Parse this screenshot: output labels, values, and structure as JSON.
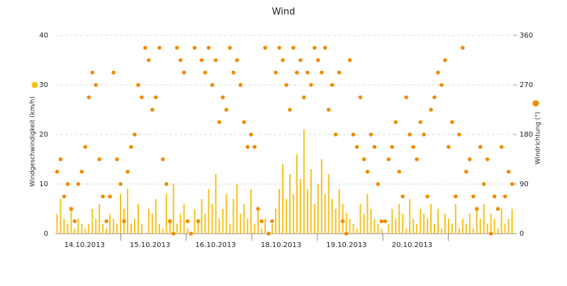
{
  "chart_data": {
    "type": "bar-scatter",
    "title": "Wind",
    "x_labels": [
      "14.10.2013",
      "15.10.2013",
      "16.10.2013",
      "18.10.2013",
      "19.10.2013",
      "20.10.2013"
    ],
    "ylim": [
      0,
      40
    ],
    "yticks": [
      0,
      10,
      20,
      30,
      40
    ],
    "y2lim": [
      0,
      360
    ],
    "y2ticks": [
      0,
      90,
      180,
      270,
      360
    ],
    "grid": true,
    "series": [
      {
        "name": "Windgeschwindigkeit (km/h)",
        "color": "#f7c21b",
        "type": "bar",
        "values": [
          4,
          7,
          3,
          2,
          5,
          1,
          3,
          2,
          1,
          2,
          5,
          3,
          6,
          2,
          1,
          4,
          3,
          2,
          8,
          5,
          9,
          2,
          3,
          6,
          2,
          0,
          5,
          4,
          7,
          2,
          1,
          8,
          3,
          10,
          2,
          4,
          6,
          1,
          0,
          5,
          3,
          7,
          4,
          9,
          6,
          12,
          3,
          5,
          8,
          2,
          7,
          10,
          4,
          6,
          3,
          9,
          2,
          5,
          1,
          3,
          0,
          2,
          5,
          9,
          14,
          7,
          12,
          8,
          16,
          11,
          21,
          9,
          13,
          6,
          10,
          15,
          8,
          12,
          7,
          5,
          9,
          6,
          4,
          3,
          2,
          1,
          6,
          4,
          8,
          5,
          3,
          2,
          1,
          0,
          2,
          5,
          3,
          6,
          4,
          1,
          7,
          3,
          2,
          5,
          4,
          3,
          6,
          2,
          5,
          1,
          4,
          3,
          2,
          6,
          1,
          3,
          2,
          4,
          1,
          5,
          3,
          6,
          2,
          4,
          3,
          1,
          5,
          2,
          3,
          5
        ]
      },
      {
        "name": "Windrichtung (°)",
        "color": "#f08c00",
        "type": "scatter",
        "axis": "y2",
        "values": [
          112.5,
          135,
          67.5,
          90,
          45,
          22.5,
          90,
          112.5,
          157.5,
          247.5,
          292.5,
          270,
          135,
          67.5,
          22.5,
          67.5,
          292.5,
          135,
          90,
          22.5,
          112.5,
          157.5,
          180,
          270,
          247.5,
          337.5,
          315,
          225,
          247.5,
          337.5,
          135,
          90,
          22.5,
          0,
          337.5,
          315,
          292.5,
          22.5,
          0,
          337.5,
          22.5,
          315,
          292.5,
          337.5,
          270,
          315,
          202.5,
          247.5,
          225,
          337.5,
          292.5,
          315,
          270,
          202.5,
          157.5,
          180,
          157.5,
          45,
          22.5,
          337.5,
          0,
          22.5,
          292.5,
          337.5,
          315,
          270,
          225,
          337.5,
          292.5,
          315,
          247.5,
          292.5,
          270,
          337.5,
          315,
          292.5,
          337.5,
          225,
          270,
          180,
          292.5,
          22.5,
          0,
          315,
          180,
          157.5,
          247.5,
          135,
          112.5,
          180,
          157.5,
          90,
          22.5,
          22.5,
          135,
          157.5,
          202.5,
          112.5,
          67.5,
          247.5,
          180,
          157.5,
          135,
          202.5,
          180,
          67.5,
          225,
          247.5,
          292.5,
          270,
          315,
          157.5,
          202.5,
          67.5,
          180,
          337.5,
          112.5,
          135,
          67.5,
          45,
          157.5,
          90,
          135,
          0,
          67.5,
          45,
          157.5,
          67.5,
          112.5,
          90
        ]
      }
    ]
  }
}
